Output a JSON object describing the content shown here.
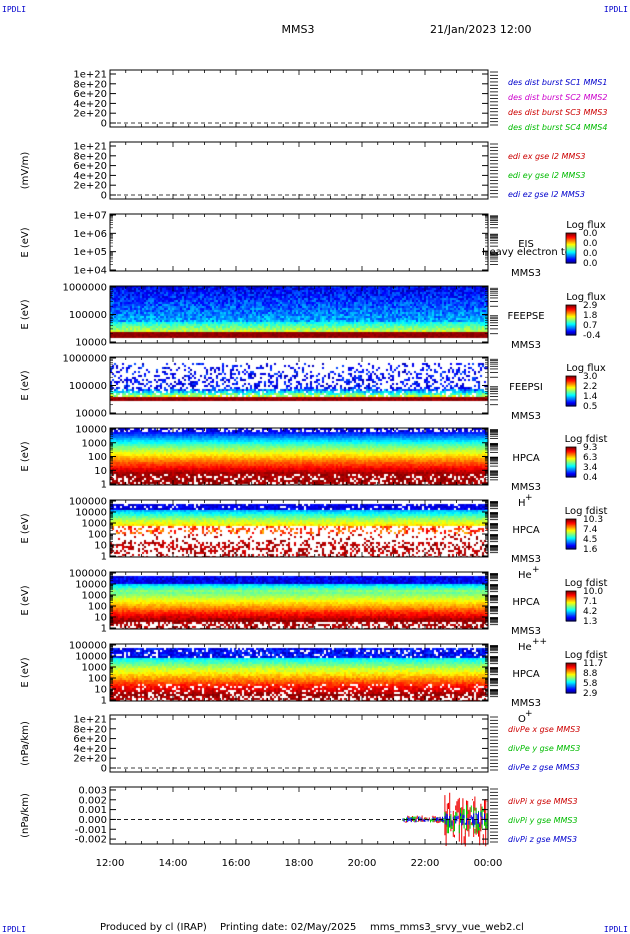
{
  "corner_label": "IPDLI",
  "header": {
    "spacecraft": "MMS3",
    "date": "21/Jan/2023 12:00"
  },
  "footer": {
    "produced": "Produced by  cl (IRAP)",
    "printed": "Printing date: 02/May/2025",
    "file": "mms_mms3_srvy_vue_web2.cl"
  },
  "chart_data": {
    "type": "multi-panel time series",
    "x_ticks": [
      "12:00",
      "14:00",
      "16:00",
      "18:00",
      "20:00",
      "22:00",
      "00:00"
    ],
    "x_hours": [
      12,
      14,
      16,
      18,
      20,
      22,
      24
    ],
    "panels": [
      {
        "id": "des",
        "type": "line",
        "ylabel": "",
        "y_ticks": [
          "1e+21",
          "8e+20",
          "6e+20",
          "4e+20",
          "2e+20",
          "0"
        ],
        "y_values": [
          1e+21,
          8e+20,
          6e+20,
          4e+20,
          2e+20,
          0
        ],
        "zero_line": true,
        "legend": [
          {
            "text": "des dist burst SC1 MMS1",
            "color": "#0000cc"
          },
          {
            "text": "des dist burst SC2 MMS2",
            "color": "#cc00cc"
          },
          {
            "text": "des dist burst SC3 MMS3",
            "color": "#cc0000"
          },
          {
            "text": "des dist burst SC4 MMS4",
            "color": "#00bb00"
          }
        ]
      },
      {
        "id": "edi",
        "type": "line",
        "ylabel": "(mV/m)",
        "y_ticks": [
          "1e+21",
          "8e+20",
          "6e+20",
          "4e+20",
          "2e+20",
          "0"
        ],
        "y_values": [
          1e+21,
          8e+20,
          6e+20,
          4e+20,
          2e+20,
          0
        ],
        "zero_line": true,
        "legend": [
          {
            "text": "edi ex gse l2 MMS3",
            "color": "#cc0000"
          },
          {
            "text": "edi ey gse l2 MMS3",
            "color": "#00bb00"
          },
          {
            "text": "edi ez gse l2 MMS3",
            "color": "#0000cc"
          }
        ]
      },
      {
        "id": "eis",
        "type": "heatmap",
        "ylabel": "E (eV)",
        "y_ticks": [
          "1e+07",
          "1e+06",
          "1e+05",
          "1e+04"
        ],
        "y_values": [
          10000000.0,
          1000000.0,
          100000.0,
          10000.0
        ],
        "log": true,
        "side": [
          "EIS",
          "MMS3"
        ],
        "overlay": "Heavy electron to",
        "cb_title": "Log flux",
        "cb_labels": [
          "0.0",
          "0.0",
          "0.0",
          "0.0"
        ],
        "spectrum": false
      },
      {
        "id": "feepse",
        "type": "heatmap",
        "ylabel": "E (eV)",
        "y_ticks": [
          "1000000",
          "100000",
          "10000"
        ],
        "y_values": [
          1000000.0,
          100000.0,
          10000.0
        ],
        "log": true,
        "side": [
          "FEEPSE",
          "MMS3"
        ],
        "cb_title": "Log flux",
        "cb_labels": [
          "2.9",
          "1.8",
          "0.7",
          "-0.4"
        ],
        "spectrum": true,
        "style": "feepse"
      },
      {
        "id": "feepsi",
        "type": "heatmap",
        "ylabel": "E (eV)",
        "y_ticks": [
          "1000000",
          "100000",
          "10000"
        ],
        "y_values": [
          1000000.0,
          100000.0,
          10000.0
        ],
        "log": true,
        "side": [
          "FEEPSI",
          "MMS3"
        ],
        "cb_title": "Log flux",
        "cb_labels": [
          "3.0",
          "2.2",
          "1.4",
          "0.5"
        ],
        "spectrum": true,
        "style": "feepsi"
      },
      {
        "id": "hpca_h",
        "type": "heatmap",
        "ylabel": "E (eV)",
        "y_ticks": [
          "10000",
          "1000",
          "100",
          "10",
          "1"
        ],
        "y_values": [
          10000.0,
          1000.0,
          100.0,
          10.0,
          1
        ],
        "log": true,
        "side": [
          "HPCA",
          "MMS3"
        ],
        "species": "H",
        "charge": "+",
        "cb_title": "Log fdist",
        "cb_labels": [
          "9.3",
          "6.3",
          "3.4",
          "0.4"
        ],
        "spectrum": true,
        "style": "hpca_h"
      },
      {
        "id": "hpca_he",
        "type": "heatmap",
        "ylabel": "E (eV)",
        "y_ticks": [
          "100000",
          "10000",
          "1000",
          "100",
          "10",
          "1"
        ],
        "y_values": [
          100000.0,
          10000.0,
          1000.0,
          100.0,
          10.0,
          1
        ],
        "log": true,
        "side": [
          "HPCA",
          "MMS3"
        ],
        "species": "He",
        "charge": "+",
        "cb_title": "Log fdist",
        "cb_labels": [
          "10.3",
          "7.4",
          "4.5",
          "1.6"
        ],
        "spectrum": true,
        "style": "hpca_he"
      },
      {
        "id": "hpca_hepp",
        "type": "heatmap",
        "ylabel": "E (eV)",
        "y_ticks": [
          "100000",
          "10000",
          "1000",
          "100",
          "10",
          "1"
        ],
        "y_values": [
          100000.0,
          10000.0,
          1000.0,
          100.0,
          10.0,
          1
        ],
        "log": true,
        "side": [
          "HPCA",
          "MMS3"
        ],
        "species": "He",
        "charge": "++",
        "cb_title": "Log fdist",
        "cb_labels": [
          "10.0",
          "7.1",
          "4.2",
          "1.3"
        ],
        "spectrum": true,
        "style": "hpca_hepp"
      },
      {
        "id": "hpca_o",
        "type": "heatmap",
        "ylabel": "E (eV)",
        "y_ticks": [
          "100000",
          "10000",
          "1000",
          "100",
          "10",
          "1"
        ],
        "y_values": [
          100000.0,
          10000.0,
          1000.0,
          100.0,
          10.0,
          1
        ],
        "log": true,
        "side": [
          "HPCA",
          "MMS3"
        ],
        "species": "O",
        "charge": "+",
        "cb_title": "Log fdist",
        "cb_labels": [
          "11.7",
          "8.8",
          "5.8",
          "2.9"
        ],
        "spectrum": true,
        "style": "hpca_o"
      },
      {
        "id": "divpe",
        "type": "line",
        "ylabel": "(nPa/km)",
        "y_ticks": [
          "1e+21",
          "8e+20",
          "6e+20",
          "4e+20",
          "2e+20",
          "0"
        ],
        "y_values": [
          1e+21,
          8e+20,
          6e+20,
          4e+20,
          2e+20,
          0
        ],
        "zero_line": true,
        "legend": [
          {
            "text": "divPe x gse MMS3",
            "color": "#cc0000"
          },
          {
            "text": "divPe y gse MMS3",
            "color": "#00bb00"
          },
          {
            "text": "divPe z gse MMS3",
            "color": "#0000cc"
          }
        ]
      },
      {
        "id": "divpi",
        "type": "line",
        "ylabel": "(nPa/km)",
        "y_ticks": [
          "0.003",
          "0.002",
          "0.001",
          "0.000",
          "-0.001",
          "-0.002"
        ],
        "y_values": [
          0.003,
          0.002,
          0.001,
          0,
          -0.001,
          -0.002
        ],
        "ylim": [
          -0.0025,
          0.0033
        ],
        "zero_line": true,
        "data_start_hour": 21.3,
        "data_burst_hour": 22.6,
        "legend": [
          {
            "text": "divPi x gse MMS3",
            "color": "#cc0000"
          },
          {
            "text": "divPi y gse MMS3",
            "color": "#00bb00"
          },
          {
            "text": "divPi z gse MMS3",
            "color": "#0000cc"
          }
        ]
      }
    ]
  }
}
